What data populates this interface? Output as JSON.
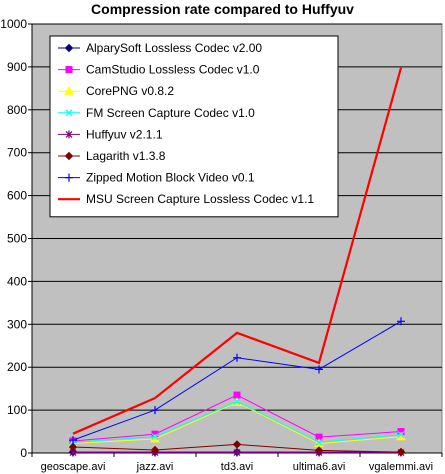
{
  "chart_data": {
    "type": "line",
    "title": "Compression rate compared to Huffyuv",
    "xlabel": "",
    "ylabel": "",
    "categories": [
      "geoscape.avi",
      "jazz.avi",
      "td3.avi",
      "ultima6.avi",
      "vgalemmi.avi"
    ],
    "ylim": [
      0,
      1000
    ],
    "yticks": [
      0,
      100,
      200,
      300,
      400,
      500,
      600,
      700,
      800,
      900,
      1000
    ],
    "grid": true,
    "legend_position": "top-left inside",
    "plot_background": "#c0c0c0",
    "series": [
      {
        "name": "AlparySoft Lossless Codec v2.00",
        "values": [
          2,
          2,
          2,
          2,
          2
        ],
        "color": "#000080",
        "marker": "diamond"
      },
      {
        "name": "CamStudio Lossless Codec v1.0",
        "values": [
          28,
          44,
          135,
          37,
          50
        ],
        "color": "#ff00ff",
        "marker": "square"
      },
      {
        "name": "CorePNG v0.8.2",
        "values": [
          22,
          33,
          118,
          22,
          38
        ],
        "color": "#ffff00",
        "marker": "triangle"
      },
      {
        "name": "FM Screen Capture Codec v1.0",
        "values": [
          25,
          38,
          120,
          25,
          43
        ],
        "color": "#00ffff",
        "marker": "x"
      },
      {
        "name": "Huffyuv v2.1.1",
        "values": [
          1,
          1,
          1,
          1,
          1
        ],
        "color": "#800080",
        "marker": "star"
      },
      {
        "name": "Lagarith v1.3.8",
        "values": [
          14,
          7,
          20,
          6,
          2
        ],
        "color": "#800000",
        "marker": "diamond"
      },
      {
        "name": "Zipped Motion Block Video v0.1",
        "values": [
          30,
          100,
          222,
          195,
          307
        ],
        "color": "#0000ff",
        "marker": "plus"
      },
      {
        "name": "MSU Screen Capture Lossless Codec v1.1",
        "values": [
          45,
          128,
          280,
          210,
          898
        ],
        "color": "#ff0000",
        "marker": "none"
      }
    ]
  }
}
